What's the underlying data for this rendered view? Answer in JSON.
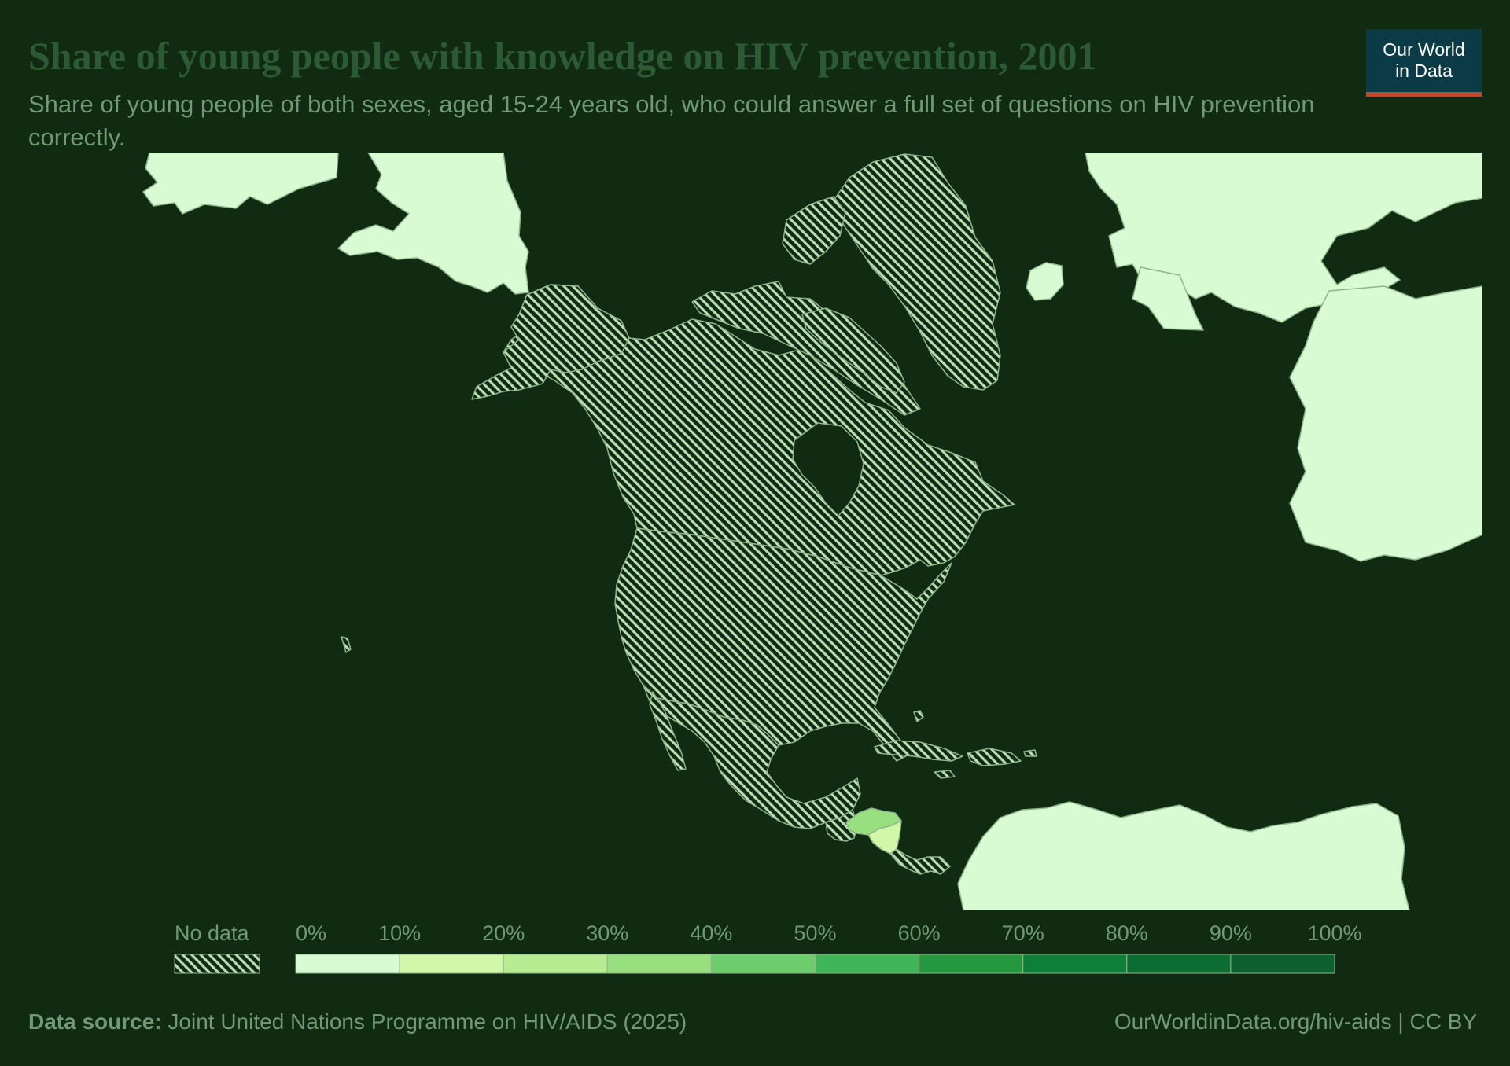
{
  "title": "Share of young people with knowledge on HIV prevention, 2001",
  "subtitle": "Share of young people of both sexes, aged 15-24 years old, who could answer a full set of questions on HIV prevention correctly.",
  "logo": {
    "line1": "Our World",
    "line2": "in Data"
  },
  "legend": {
    "no_data_label": "No data",
    "bins": [
      {
        "label": "0%",
        "color": "#d9fbd3"
      },
      {
        "label": "10%",
        "color": "#d2f7a8"
      },
      {
        "label": "20%",
        "color": "#b7ec92"
      },
      {
        "label": "30%",
        "color": "#98e07f"
      },
      {
        "label": "40%",
        "color": "#6dcc6c"
      },
      {
        "label": "50%",
        "color": "#3fb558"
      },
      {
        "label": "60%",
        "color": "#25983f"
      },
      {
        "label": "70%",
        "color": "#0e7f38"
      },
      {
        "label": "80%",
        "color": "#0c6c31"
      },
      {
        "label": "90%",
        "color": "#0e5f2e"
      }
    ],
    "end_label": "100%"
  },
  "map_data": {
    "region": "North America",
    "countries": [
      {
        "name": "Canada",
        "value": null
      },
      {
        "name": "United States",
        "value": null
      },
      {
        "name": "Greenland",
        "value": null
      },
      {
        "name": "Mexico",
        "value": null
      },
      {
        "name": "Guatemala",
        "value": null
      },
      {
        "name": "Belize",
        "value": null
      },
      {
        "name": "El Salvador",
        "value": null
      },
      {
        "name": "Cuba",
        "value": null
      },
      {
        "name": "Haiti",
        "value": null
      },
      {
        "name": "Dominican Republic",
        "value": null
      },
      {
        "name": "Jamaica",
        "value": null
      },
      {
        "name": "Bahamas",
        "value": null
      },
      {
        "name": "Costa Rica",
        "value": null
      },
      {
        "name": "Panama",
        "value": null
      },
      {
        "name": "Honduras",
        "value": 35
      },
      {
        "name": "Nicaragua",
        "value": 12
      }
    ],
    "colors": {
      "background": "#112a12",
      "outside_region": "#d9fbd3",
      "no_data_hatch": "#b9ddb5",
      "border": "#8fb68b"
    }
  },
  "footer": {
    "source_label": "Data source:",
    "source_text": " Joint United Nations Programme on HIV/AIDS (2025)",
    "url": "OurWorldinData.org/hiv-aids | CC BY"
  }
}
